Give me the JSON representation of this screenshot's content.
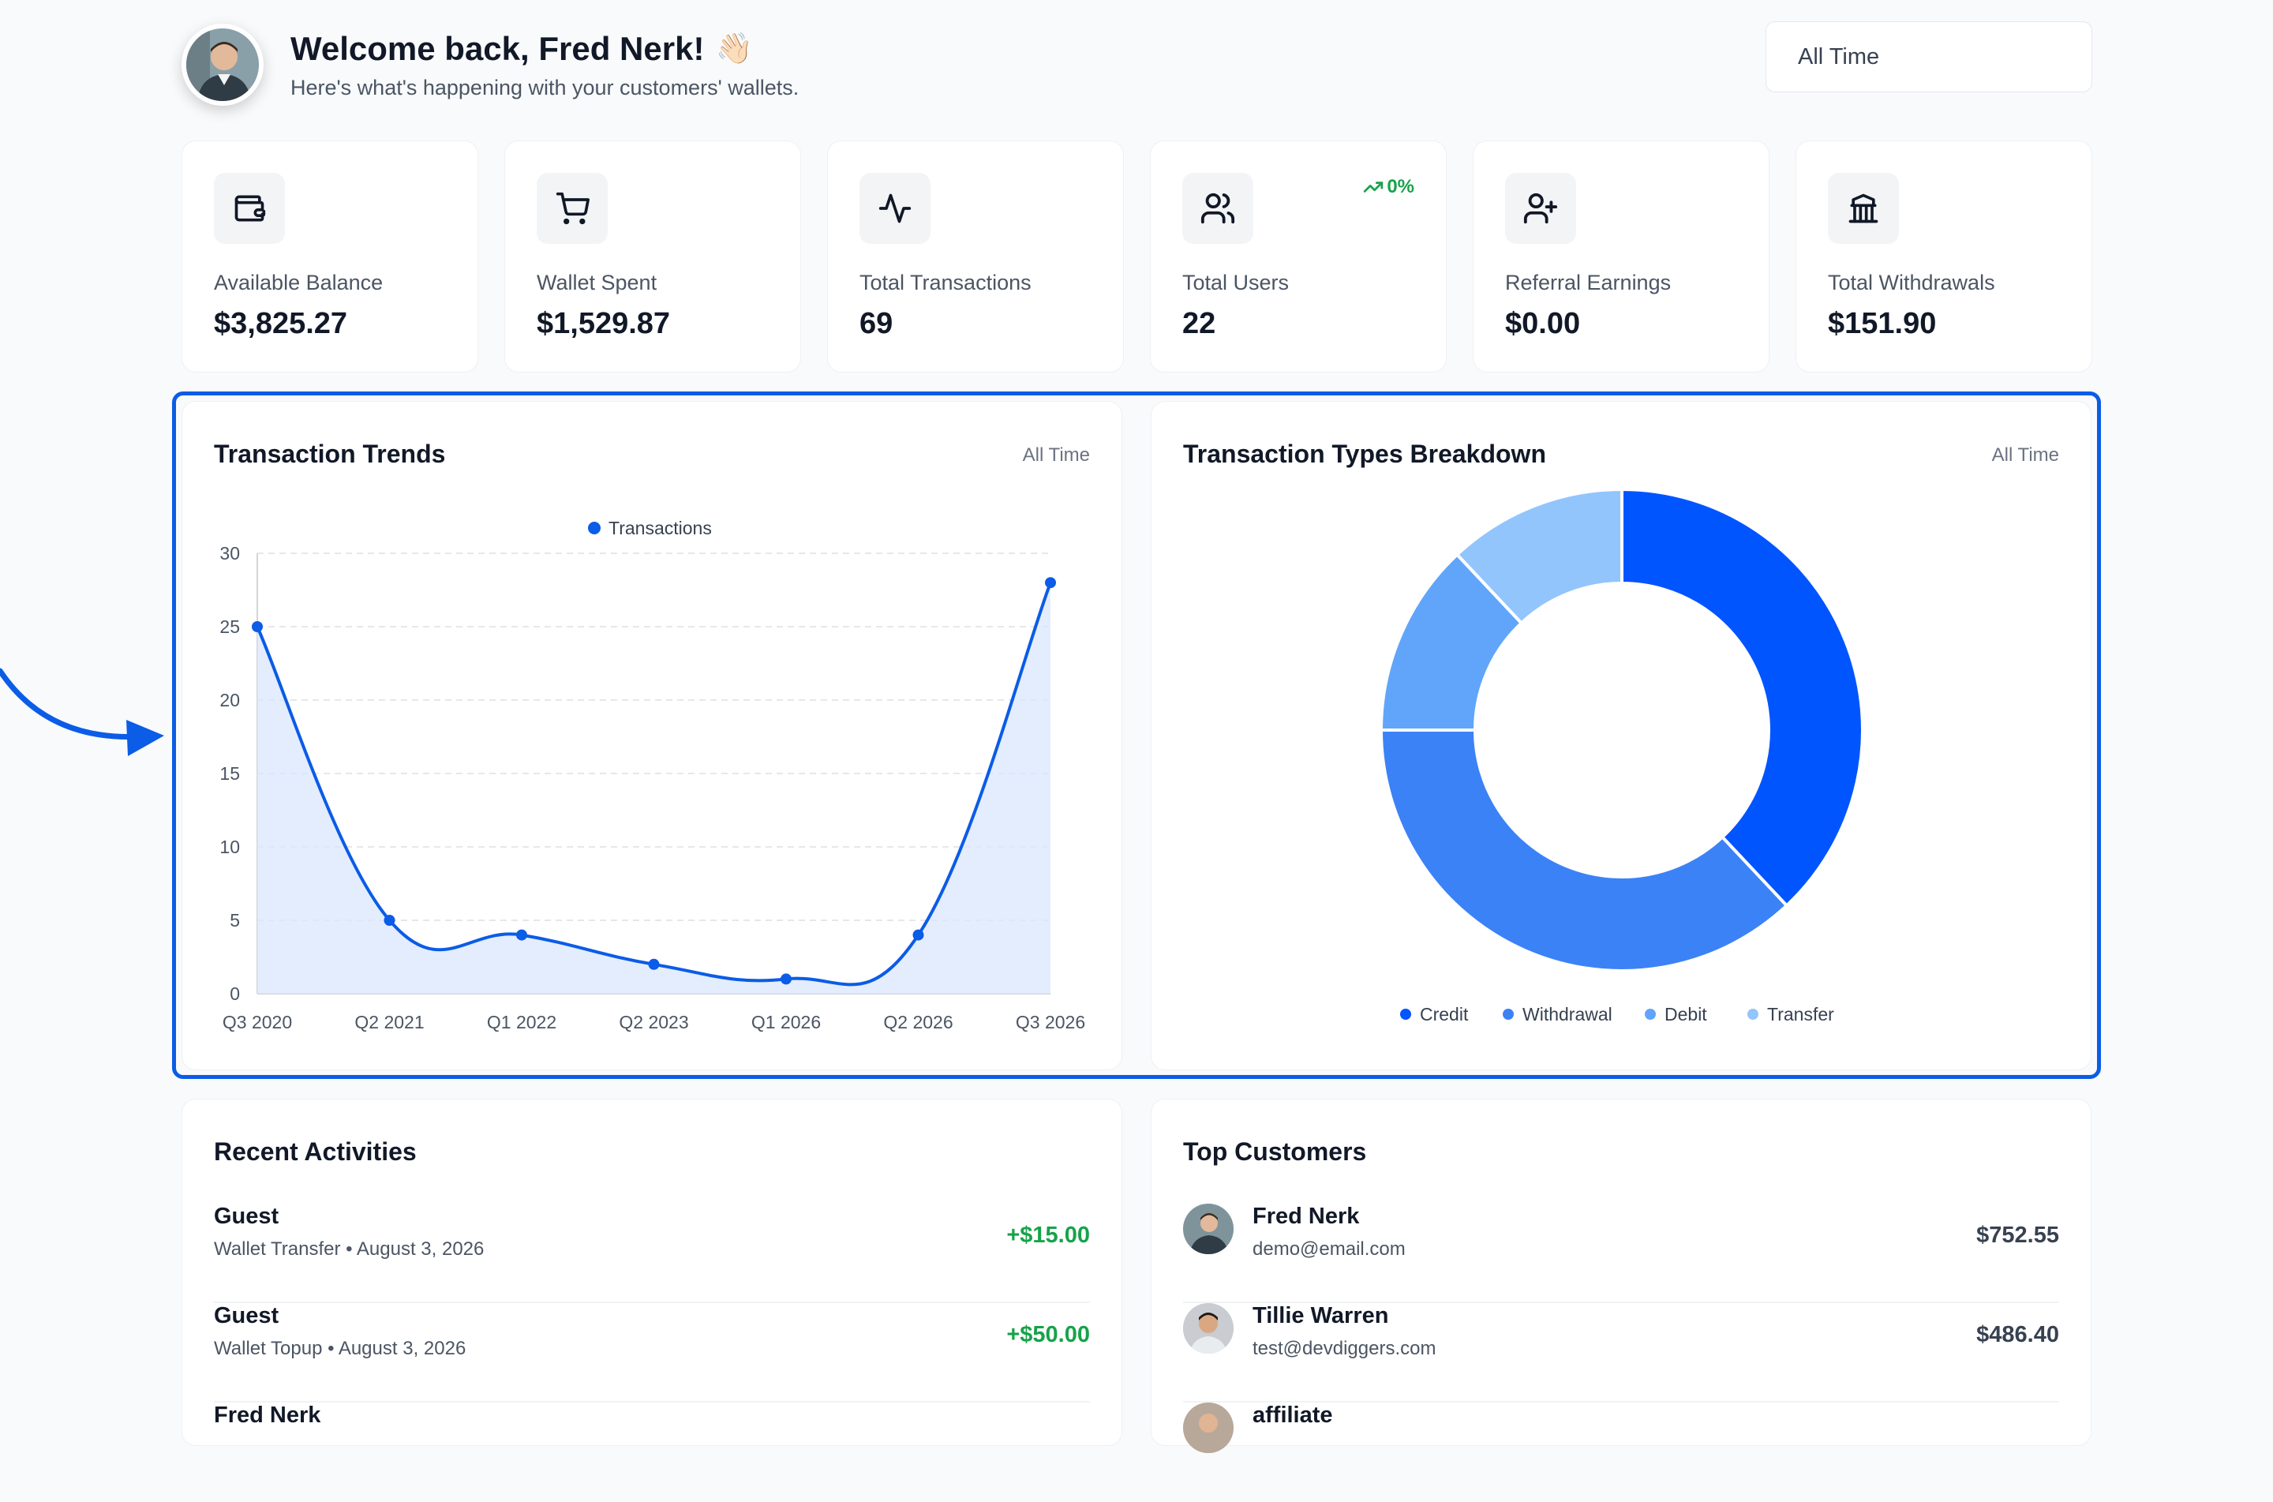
{
  "header": {
    "greeting": "Welcome back, Fred Nerk!",
    "wave": "👋🏻",
    "subtitle": "Here's what's happening with your customers' wallets.",
    "time_filter": "All Time"
  },
  "stats": [
    {
      "label": "Available Balance",
      "value": "$3,825.27",
      "icon": "wallet-icon"
    },
    {
      "label": "Wallet Spent",
      "value": "$1,529.87",
      "icon": "cart-icon"
    },
    {
      "label": "Total Transactions",
      "value": "69",
      "icon": "activity-icon"
    },
    {
      "label": "Total Users",
      "value": "22",
      "icon": "users-icon",
      "trend": "0%"
    },
    {
      "label": "Referral Earnings",
      "value": "$0.00",
      "icon": "user-plus-icon"
    },
    {
      "label": "Total Withdrawals",
      "value": "$151.90",
      "icon": "bank-icon"
    }
  ],
  "trends_panel": {
    "title": "Transaction Trends",
    "tag": "All Time"
  },
  "breakdown_panel": {
    "title": "Transaction Types Breakdown",
    "tag": "All Time"
  },
  "chart_data": [
    {
      "type": "line",
      "title": "Transaction Trends",
      "x": [
        "Q3 2020",
        "Q2 2021",
        "Q1 2022",
        "Q2 2023",
        "Q1 2026",
        "Q2 2026",
        "Q3 2026"
      ],
      "series": [
        {
          "name": "Transactions",
          "values": [
            25,
            5,
            4,
            2,
            1,
            4,
            28
          ]
        }
      ],
      "yticks": [
        0,
        5,
        10,
        15,
        20,
        25,
        30
      ],
      "ylim": [
        0,
        30
      ],
      "legend": "top-center",
      "grid": true,
      "fill": true,
      "color": "#0b5ce6"
    },
    {
      "type": "pie",
      "title": "Transaction Types Breakdown",
      "donut": true,
      "categories": [
        "Credit",
        "Withdrawal",
        "Debit",
        "Transfer"
      ],
      "values": [
        38,
        37,
        13,
        12
      ],
      "colors": [
        "#0055ff",
        "#3b82f6",
        "#60a5fa",
        "#93c5fd"
      ],
      "legend": "bottom"
    }
  ],
  "recent_activities": {
    "title": "Recent Activities",
    "items": [
      {
        "name": "Guest",
        "detail": "Wallet Transfer • August 3, 2026",
        "amount": "+$15.00"
      },
      {
        "name": "Guest",
        "detail": "Wallet Topup • August 3, 2026",
        "amount": "+$50.00"
      },
      {
        "name": "Fred Nerk",
        "detail": "",
        "amount": ""
      }
    ]
  },
  "top_customers": {
    "title": "Top Customers",
    "items": [
      {
        "name": "Fred Nerk",
        "email": "demo@email.com",
        "amount": "$752.55"
      },
      {
        "name": "Tillie Warren",
        "email": "test@devdiggers.com",
        "amount": "$486.40"
      },
      {
        "name": "affiliate",
        "email": "",
        "amount": ""
      }
    ]
  }
}
